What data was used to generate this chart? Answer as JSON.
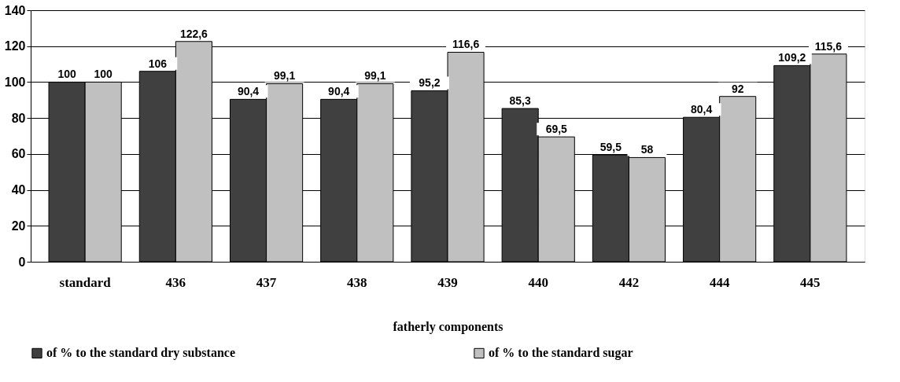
{
  "chart_data": {
    "type": "bar",
    "xlabel": "fatherly components",
    "categories": [
      "standard",
      "436",
      "437",
      "438",
      "439",
      "440",
      "442",
      "444",
      "445"
    ],
    "series": [
      {
        "name": "of % to the standard dry substance",
        "color": "#404040",
        "values": [
          100,
          106,
          90.4,
          90.4,
          95.2,
          85.3,
          59.5,
          80.4,
          109.2
        ],
        "value_labels": [
          "100",
          "106",
          "90,4",
          "90,4",
          "95,2",
          "85,3",
          "59,5",
          "80,4",
          "109,2"
        ]
      },
      {
        "name": "of % to the standard sugar",
        "color": "#c0c0c0",
        "values": [
          100,
          122.6,
          99.1,
          99.1,
          116.6,
          69.5,
          58,
          92,
          115.6
        ],
        "value_labels": [
          "100",
          "122,6",
          "99,1",
          "99,1",
          "116,6",
          "69,5",
          "58",
          "92",
          "115,6"
        ]
      }
    ],
    "ylim": [
      0,
      140
    ],
    "yticks": [
      0,
      20,
      40,
      60,
      80,
      100,
      120,
      140
    ],
    "grid": "y",
    "legend": "bottom"
  }
}
